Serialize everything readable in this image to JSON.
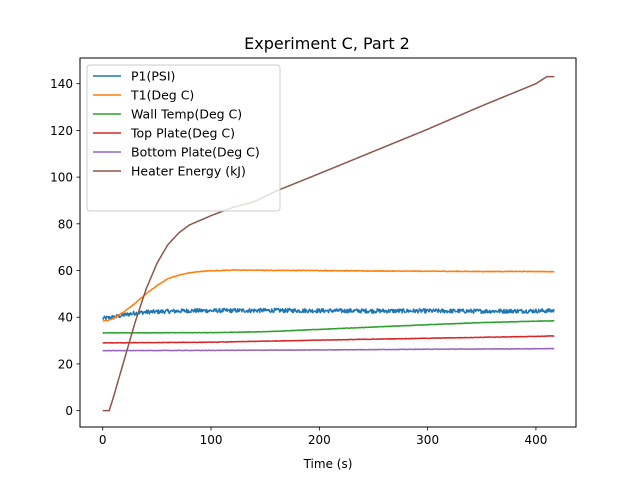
{
  "chart_data": {
    "type": "line",
    "title": "Experiment C, Part 2",
    "xlabel": "Time (s)",
    "ylabel": "",
    "xlim": [
      -21,
      437
    ],
    "ylim": [
      -7,
      151
    ],
    "xticks": [
      0,
      100,
      200,
      300,
      400
    ],
    "yticks": [
      0,
      20,
      40,
      60,
      80,
      100,
      120,
      140
    ],
    "grid": false,
    "legend_position": "top-left",
    "series": [
      {
        "name": "P1(PSI)",
        "color": "#1f77b4",
        "noise": 0.9,
        "x": [
          0,
          10,
          20,
          30,
          40,
          60,
          80,
          100,
          150,
          200,
          250,
          300,
          350,
          400,
          417
        ],
        "y": [
          39.5,
          40.0,
          41.0,
          41.8,
          42.2,
          42.5,
          42.8,
          42.8,
          42.9,
          42.8,
          42.7,
          42.7,
          42.6,
          42.7,
          42.8
        ]
      },
      {
        "name": "T1(Deg C)",
        "color": "#ff7f0e",
        "noise": 0.15,
        "x": [
          0,
          5,
          10,
          20,
          30,
          40,
          50,
          60,
          70,
          80,
          90,
          100,
          120,
          150,
          200,
          250,
          300,
          350,
          400,
          417
        ],
        "y": [
          38.5,
          38.6,
          39.5,
          42.5,
          46.0,
          50.0,
          53.5,
          56.5,
          58.0,
          59.0,
          59.6,
          59.9,
          60.2,
          60.1,
          60.0,
          59.8,
          59.7,
          59.6,
          59.6,
          59.5
        ]
      },
      {
        "name": "Wall Temp(Deg C)",
        "color": "#2ca02c",
        "noise": 0.1,
        "x": [
          0,
          100,
          150,
          200,
          250,
          300,
          350,
          400,
          417
        ],
        "y": [
          33.3,
          33.4,
          33.8,
          34.8,
          35.8,
          36.8,
          37.7,
          38.3,
          38.5
        ]
      },
      {
        "name": "Top Plate(Deg C)",
        "color": "#d62728",
        "noise": 0.1,
        "x": [
          0,
          100,
          200,
          300,
          400,
          417
        ],
        "y": [
          29.0,
          29.3,
          30.2,
          31.0,
          31.8,
          32.0
        ]
      },
      {
        "name": "Bottom Plate(Deg C)",
        "color": "#9467bd",
        "noise": 0.1,
        "x": [
          0,
          100,
          200,
          300,
          400,
          417
        ],
        "y": [
          25.7,
          25.8,
          26.0,
          26.3,
          26.5,
          26.6
        ]
      },
      {
        "name": "Heater Energy (kJ)",
        "color": "#8c564b",
        "noise": 0,
        "x": [
          0,
          6,
          10,
          20,
          30,
          40,
          50,
          60,
          70,
          80,
          90,
          100,
          120,
          140,
          160,
          200,
          250,
          300,
          350,
          400,
          410,
          417
        ],
        "y": [
          0,
          0,
          6,
          22,
          38,
          52,
          63,
          71,
          76,
          79.5,
          81.5,
          83.5,
          87,
          89.5,
          94,
          101.5,
          111,
          120.5,
          130.5,
          140,
          143,
          143
        ]
      }
    ]
  }
}
